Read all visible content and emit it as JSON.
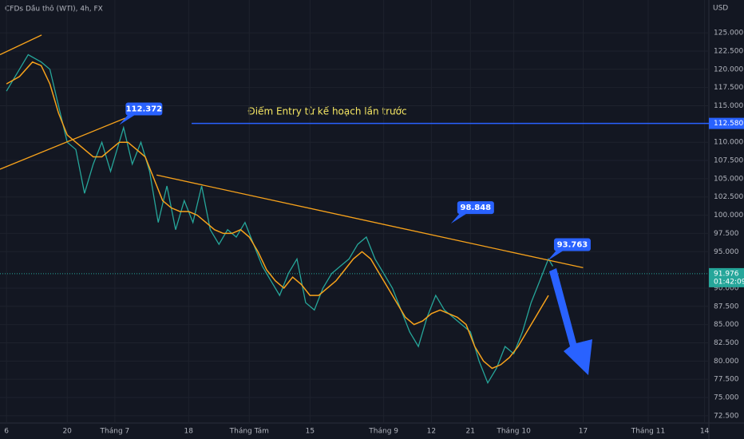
{
  "header": {
    "symbol": "CFDs Dầu thô (WTI), 4h, FX",
    "currency": "USD"
  },
  "chart_data": {
    "type": "line",
    "xlim": [
      -1.5,
      162
    ],
    "ylim": [
      71.5,
      129.5
    ],
    "xticks": [
      {
        "value": 0,
        "label": "6"
      },
      {
        "value": 14,
        "label": "20"
      },
      {
        "value": 25,
        "label": "Tháng 7"
      },
      {
        "value": 42,
        "label": "18"
      },
      {
        "value": 56,
        "label": "Tháng Tám"
      },
      {
        "value": 70,
        "label": "15"
      },
      {
        "value": 87,
        "label": "Tháng 9"
      },
      {
        "value": 98,
        "label": "12"
      },
      {
        "value": 107,
        "label": "21"
      },
      {
        "value": 117,
        "label": "Tháng 10"
      },
      {
        "value": 133,
        "label": "17"
      },
      {
        "value": 148,
        "label": "Tháng 11"
      },
      {
        "value": 161,
        "label": "14"
      }
    ],
    "yticks": [
      {
        "value": 72.5,
        "label": "72.500"
      },
      {
        "value": 75,
        "label": "75.000"
      },
      {
        "value": 77.5,
        "label": "77.500"
      },
      {
        "value": 80,
        "label": "80.000"
      },
      {
        "value": 82.5,
        "label": "82.500"
      },
      {
        "value": 85,
        "label": "85.000"
      },
      {
        "value": 87.5,
        "label": "87.500"
      },
      {
        "value": 90,
        "label": "90.000"
      },
      {
        "value": 95,
        "label": "95.000"
      },
      {
        "value": 97.5,
        "label": "97.500"
      },
      {
        "value": 100,
        "label": "100.000"
      },
      {
        "value": 102.5,
        "label": "102.500"
      },
      {
        "value": 105,
        "label": "105.000"
      },
      {
        "value": 107.5,
        "label": "107.500"
      },
      {
        "value": 110,
        "label": "110.000"
      },
      {
        "value": 115,
        "label": "115.000"
      },
      {
        "value": 117.5,
        "label": "117.500"
      },
      {
        "value": 120,
        "label": "120.000"
      },
      {
        "value": 122.5,
        "label": "122.500"
      },
      {
        "value": 125,
        "label": "125.000"
      }
    ],
    "grid": true,
    "series": [
      {
        "color": "#26a69a",
        "x": [
          0,
          3,
          5,
          8,
          10,
          12,
          14,
          16,
          18,
          20,
          22,
          24,
          25,
          27,
          29,
          31,
          33,
          35,
          37,
          39,
          41,
          43,
          45,
          47,
          49,
          51,
          53,
          55,
          57,
          59,
          61,
          63,
          65,
          67,
          69,
          71,
          73,
          75,
          77,
          79,
          81,
          83,
          85,
          87,
          89,
          91,
          93,
          95,
          97,
          99,
          101,
          103,
          105,
          107,
          109,
          111,
          113,
          115,
          117,
          119,
          121,
          123,
          125,
          126
        ],
        "values": [
          117,
          120,
          122,
          121,
          120,
          115,
          110,
          109,
          103,
          107,
          110,
          106,
          108,
          112,
          107,
          110,
          106,
          99,
          104,
          98,
          102,
          99,
          104,
          98,
          96,
          98,
          97,
          99,
          96,
          93,
          91,
          89,
          92,
          94,
          88,
          87,
          90,
          92,
          93,
          94,
          96,
          97,
          94,
          92,
          90,
          87,
          84,
          82,
          86,
          89,
          87,
          86,
          85,
          84,
          80,
          77,
          79,
          82,
          81,
          84,
          88,
          91,
          94,
          93
        ]
      },
      {
        "color": "#f7a21b",
        "x": [
          0,
          3,
          6,
          8,
          10,
          12,
          14,
          16,
          18,
          20,
          22,
          24,
          26,
          28,
          30,
          32,
          34,
          36,
          38,
          40,
          42,
          44,
          46,
          48,
          50,
          52,
          54,
          56,
          58,
          60,
          62,
          64,
          66,
          68,
          70,
          72,
          74,
          76,
          78,
          80,
          82,
          84,
          86,
          88,
          90,
          92,
          94,
          96,
          98,
          100,
          102,
          104,
          106,
          108,
          110,
          112,
          114,
          116,
          118,
          120,
          122,
          124,
          125
        ],
        "values": [
          118,
          119,
          121,
          120.5,
          118,
          114,
          111,
          110,
          109,
          108,
          108,
          109,
          110,
          110,
          109,
          108,
          105,
          102,
          101,
          100.5,
          100.5,
          100,
          99,
          98,
          97.5,
          97.5,
          98,
          97,
          95,
          92.5,
          91,
          90,
          91.5,
          90.5,
          89,
          89,
          90,
          91,
          92.5,
          94,
          95,
          94,
          92,
          90,
          88,
          86,
          85,
          85.5,
          86.5,
          87,
          86.5,
          86,
          85,
          82,
          80,
          79,
          79.5,
          80.5,
          82,
          84,
          86,
          88,
          89
        ]
      }
    ],
    "trendlines": [
      {
        "x": [
          -1.5,
          8.1
        ],
        "values": [
          122,
          124.7
        ]
      },
      {
        "x": [
          -1.5,
          27.4
        ],
        "values": [
          106.3,
          113.3
        ]
      },
      {
        "x": [
          34.6,
          133
        ],
        "values": [
          105.5,
          92.8
        ]
      }
    ],
    "entry_line": {
      "x": 42.7,
      "value": 112.58,
      "label": "112.580"
    },
    "annotation": "Điểm Entry từ kế hoạch lần trước",
    "callouts": [
      {
        "x": 26,
        "value": 112.372
      },
      {
        "x": 102.5,
        "value": 98.848
      },
      {
        "x": 124.8,
        "value": 93.763
      }
    ],
    "last_price": {
      "value": 91.976,
      "label": "91.976",
      "countdown": "01:42:09"
    }
  }
}
